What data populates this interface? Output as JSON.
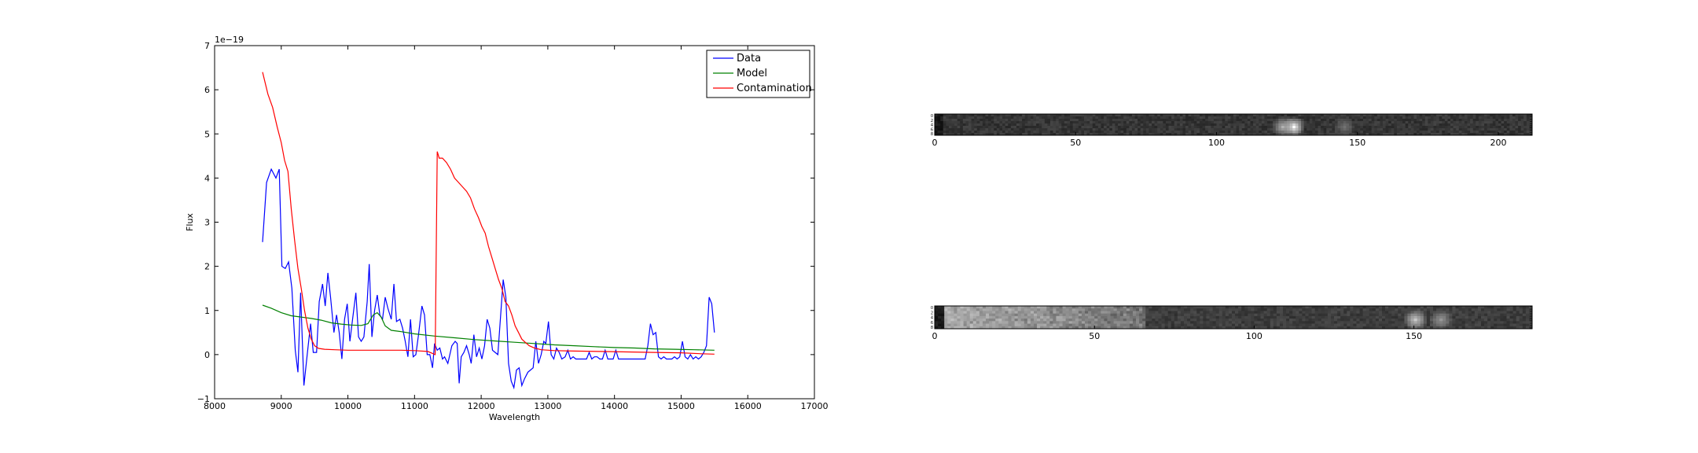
{
  "chart_data": [
    {
      "type": "line",
      "title": "",
      "xlabel": "Wavelength",
      "ylabel": "Flux",
      "offset_text": "1e−19",
      "xlim": [
        8000,
        17000
      ],
      "ylim": [
        -1,
        7
      ],
      "xticks": [
        8000,
        9000,
        10000,
        11000,
        12000,
        13000,
        14000,
        15000,
        16000,
        17000
      ],
      "yticks": [
        -1,
        0,
        1,
        2,
        3,
        4,
        5,
        6,
        7
      ],
      "grid": false,
      "legend_position": "top-right",
      "series": [
        {
          "name": "Data",
          "color": "#0000ff",
          "points": [
            [
              8720,
              2.55
            ],
            [
              8780,
              3.9
            ],
            [
              8850,
              4.2
            ],
            [
              8920,
              4.0
            ],
            [
              8970,
              4.2
            ],
            [
              9010,
              2.0
            ],
            [
              9060,
              1.95
            ],
            [
              9110,
              2.1
            ],
            [
              9160,
              1.5
            ],
            [
              9210,
              0.1
            ],
            [
              9250,
              -0.4
            ],
            [
              9290,
              1.4
            ],
            [
              9340,
              -0.7
            ],
            [
              9390,
              0.0
            ],
            [
              9440,
              0.7
            ],
            [
              9480,
              0.05
            ],
            [
              9530,
              0.05
            ],
            [
              9570,
              1.2
            ],
            [
              9620,
              1.6
            ],
            [
              9660,
              1.1
            ],
            [
              9700,
              1.85
            ],
            [
              9740,
              1.3
            ],
            [
              9790,
              0.5
            ],
            [
              9830,
              0.9
            ],
            [
              9870,
              0.5
            ],
            [
              9910,
              -0.1
            ],
            [
              9950,
              0.8
            ],
            [
              9990,
              1.15
            ],
            [
              10030,
              0.3
            ],
            [
              10070,
              0.8
            ],
            [
              10120,
              1.4
            ],
            [
              10160,
              0.4
            ],
            [
              10200,
              0.3
            ],
            [
              10240,
              0.4
            ],
            [
              10290,
              1.2
            ],
            [
              10320,
              2.05
            ],
            [
              10360,
              0.4
            ],
            [
              10400,
              1.0
            ],
            [
              10440,
              1.35
            ],
            [
              10480,
              0.9
            ],
            [
              10520,
              0.8
            ],
            [
              10560,
              1.3
            ],
            [
              10600,
              1.05
            ],
            [
              10650,
              0.8
            ],
            [
              10690,
              1.6
            ],
            [
              10730,
              0.75
            ],
            [
              10780,
              0.8
            ],
            [
              10820,
              0.6
            ],
            [
              10860,
              0.3
            ],
            [
              10900,
              -0.05
            ],
            [
              10940,
              0.8
            ],
            [
              10980,
              -0.05
            ],
            [
              11020,
              0.0
            ],
            [
              11060,
              0.45
            ],
            [
              11110,
              1.1
            ],
            [
              11150,
              0.9
            ],
            [
              11190,
              0.0
            ],
            [
              11230,
              0.0
            ],
            [
              11270,
              -0.3
            ],
            [
              11300,
              0.25
            ],
            [
              11340,
              0.1
            ],
            [
              11380,
              0.15
            ],
            [
              11420,
              -0.1
            ],
            [
              11450,
              -0.05
            ],
            [
              11500,
              -0.2
            ],
            [
              11560,
              0.2
            ],
            [
              11610,
              0.3
            ],
            [
              11640,
              0.25
            ],
            [
              11670,
              -0.65
            ],
            [
              11700,
              -0.05
            ],
            [
              11740,
              0.05
            ],
            [
              11780,
              0.2
            ],
            [
              11820,
              0.0
            ],
            [
              11850,
              -0.2
            ],
            [
              11890,
              0.45
            ],
            [
              11930,
              -0.05
            ],
            [
              11970,
              0.15
            ],
            [
              12010,
              -0.1
            ],
            [
              12050,
              0.2
            ],
            [
              12090,
              0.8
            ],
            [
              12130,
              0.6
            ],
            [
              12170,
              0.1
            ],
            [
              12210,
              0.05
            ],
            [
              12250,
              0.0
            ],
            [
              12290,
              0.85
            ],
            [
              12330,
              1.7
            ],
            [
              12370,
              1.3
            ],
            [
              12410,
              -0.2
            ],
            [
              12450,
              -0.6
            ],
            [
              12490,
              -0.75
            ],
            [
              12530,
              -0.35
            ],
            [
              12570,
              -0.3
            ],
            [
              12610,
              -0.7
            ],
            [
              12650,
              -0.55
            ],
            [
              12700,
              -0.4
            ],
            [
              12740,
              -0.35
            ],
            [
              12780,
              -0.3
            ],
            [
              12820,
              0.3
            ],
            [
              12860,
              -0.2
            ],
            [
              12900,
              0.0
            ],
            [
              12940,
              0.3
            ],
            [
              12970,
              0.25
            ],
            [
              13010,
              0.75
            ],
            [
              13050,
              0.0
            ],
            [
              13090,
              -0.1
            ],
            [
              13130,
              0.15
            ],
            [
              13170,
              0.05
            ],
            [
              13210,
              -0.1
            ],
            [
              13260,
              -0.05
            ],
            [
              13300,
              0.1
            ],
            [
              13340,
              -0.1
            ],
            [
              13380,
              -0.05
            ],
            [
              13420,
              -0.1
            ],
            [
              13460,
              -0.1
            ],
            [
              13500,
              -0.1
            ],
            [
              13540,
              -0.1
            ],
            [
              13580,
              -0.1
            ],
            [
              13620,
              0.05
            ],
            [
              13660,
              -0.1
            ],
            [
              13700,
              -0.05
            ],
            [
              13740,
              -0.05
            ],
            [
              13780,
              -0.1
            ],
            [
              13820,
              -0.1
            ],
            [
              13860,
              0.1
            ],
            [
              13900,
              -0.1
            ],
            [
              13940,
              -0.1
            ],
            [
              13980,
              -0.1
            ],
            [
              14020,
              0.1
            ],
            [
              14060,
              -0.1
            ],
            [
              14100,
              -0.1
            ],
            [
              14140,
              -0.1
            ],
            [
              14180,
              -0.1
            ],
            [
              14220,
              -0.1
            ],
            [
              14260,
              -0.1
            ],
            [
              14300,
              -0.1
            ],
            [
              14340,
              -0.1
            ],
            [
              14380,
              -0.1
            ],
            [
              14420,
              -0.1
            ],
            [
              14460,
              -0.1
            ],
            [
              14500,
              0.2
            ],
            [
              14540,
              0.7
            ],
            [
              14580,
              0.45
            ],
            [
              14620,
              0.5
            ],
            [
              14660,
              -0.05
            ],
            [
              14700,
              -0.1
            ],
            [
              14740,
              -0.05
            ],
            [
              14780,
              -0.1
            ],
            [
              14820,
              -0.1
            ],
            [
              14860,
              -0.1
            ],
            [
              14900,
              -0.05
            ],
            [
              14940,
              -0.1
            ],
            [
              14980,
              -0.05
            ],
            [
              15020,
              0.3
            ],
            [
              15060,
              -0.05
            ],
            [
              15100,
              -0.1
            ],
            [
              15140,
              0.0
            ],
            [
              15180,
              -0.1
            ],
            [
              15220,
              -0.05
            ],
            [
              15260,
              -0.1
            ],
            [
              15300,
              -0.05
            ],
            [
              15340,
              0.05
            ],
            [
              15380,
              0.2
            ],
            [
              15420,
              1.3
            ],
            [
              15460,
              1.15
            ],
            [
              15500,
              0.5
            ]
          ]
        },
        {
          "name": "Model",
          "color": "#008000",
          "points": [
            [
              8720,
              1.12
            ],
            [
              8850,
              1.05
            ],
            [
              9000,
              0.95
            ],
            [
              9150,
              0.88
            ],
            [
              9300,
              0.85
            ],
            [
              9450,
              0.82
            ],
            [
              9600,
              0.78
            ],
            [
              9750,
              0.72
            ],
            [
              9900,
              0.69
            ],
            [
              10050,
              0.67
            ],
            [
              10200,
              0.66
            ],
            [
              10300,
              0.7
            ],
            [
              10380,
              0.9
            ],
            [
              10440,
              0.95
            ],
            [
              10500,
              0.85
            ],
            [
              10560,
              0.65
            ],
            [
              10650,
              0.55
            ],
            [
              10800,
              0.52
            ],
            [
              11000,
              0.47
            ],
            [
              11300,
              0.42
            ],
            [
              11600,
              0.38
            ],
            [
              11900,
              0.34
            ],
            [
              12200,
              0.31
            ],
            [
              12500,
              0.28
            ],
            [
              12800,
              0.25
            ],
            [
              13100,
              0.22
            ],
            [
              13400,
              0.2
            ],
            [
              13700,
              0.18
            ],
            [
              14000,
              0.16
            ],
            [
              14300,
              0.15
            ],
            [
              14600,
              0.13
            ],
            [
              14900,
              0.12
            ],
            [
              15200,
              0.11
            ],
            [
              15500,
              0.1
            ]
          ]
        },
        {
          "name": "Contamination",
          "color": "#ff0000",
          "points": [
            [
              8720,
              6.4
            ],
            [
              8800,
              5.9
            ],
            [
              8870,
              5.6
            ],
            [
              8940,
              5.15
            ],
            [
              9000,
              4.8
            ],
            [
              9050,
              4.4
            ],
            [
              9100,
              4.15
            ],
            [
              9150,
              3.3
            ],
            [
              9200,
              2.6
            ],
            [
              9250,
              1.95
            ],
            [
              9300,
              1.5
            ],
            [
              9350,
              1.0
            ],
            [
              9400,
              0.6
            ],
            [
              9450,
              0.35
            ],
            [
              9500,
              0.2
            ],
            [
              9560,
              0.14
            ],
            [
              9650,
              0.12
            ],
            [
              9800,
              0.11
            ],
            [
              10000,
              0.1
            ],
            [
              10200,
              0.1
            ],
            [
              10400,
              0.1
            ],
            [
              10600,
              0.1
            ],
            [
              10800,
              0.1
            ],
            [
              11000,
              0.09
            ],
            [
              11200,
              0.07
            ],
            [
              11310,
              0.0
            ],
            [
              11340,
              4.6
            ],
            [
              11370,
              4.45
            ],
            [
              11420,
              4.45
            ],
            [
              11480,
              4.35
            ],
            [
              11540,
              4.2
            ],
            [
              11600,
              4.0
            ],
            [
              11660,
              3.9
            ],
            [
              11720,
              3.8
            ],
            [
              11780,
              3.7
            ],
            [
              11840,
              3.55
            ],
            [
              11900,
              3.3
            ],
            [
              11960,
              3.1
            ],
            [
              12010,
              2.9
            ],
            [
              12060,
              2.75
            ],
            [
              12110,
              2.45
            ],
            [
              12160,
              2.2
            ],
            [
              12210,
              1.95
            ],
            [
              12260,
              1.7
            ],
            [
              12310,
              1.5
            ],
            [
              12360,
              1.2
            ],
            [
              12410,
              1.1
            ],
            [
              12460,
              0.9
            ],
            [
              12510,
              0.65
            ],
            [
              12560,
              0.5
            ],
            [
              12610,
              0.35
            ],
            [
              12660,
              0.28
            ],
            [
              12720,
              0.2
            ],
            [
              12800,
              0.15
            ],
            [
              12900,
              0.11
            ],
            [
              13100,
              0.09
            ],
            [
              13400,
              0.08
            ],
            [
              13800,
              0.07
            ],
            [
              14200,
              0.06
            ],
            [
              14600,
              0.05
            ],
            [
              15000,
              0.04
            ],
            [
              15300,
              0.02
            ],
            [
              15500,
              0.01
            ]
          ]
        }
      ]
    },
    {
      "type": "heatmap",
      "title": "",
      "xticks": [
        0,
        50,
        100,
        150,
        200
      ],
      "xlim": [
        0,
        212
      ],
      "yticks": [
        0,
        2,
        4,
        6,
        8
      ],
      "bright_spots": [
        [
          127,
          0.7,
          1.0
        ],
        [
          123,
          0.6,
          0.7
        ],
        [
          145,
          0.4,
          0.45
        ]
      ],
      "base_level": 0.15
    },
    {
      "type": "heatmap",
      "title": "",
      "xticks": [
        0,
        50,
        100,
        150
      ],
      "xlim": [
        0,
        187
      ],
      "yticks": [
        0,
        2,
        4,
        6,
        8
      ],
      "bright_region": [
        3,
        65
      ],
      "bright_spots": [
        [
          150,
          0.7,
          0.8
        ],
        [
          158,
          0.5,
          0.6
        ]
      ],
      "base_level": 0.18
    }
  ]
}
